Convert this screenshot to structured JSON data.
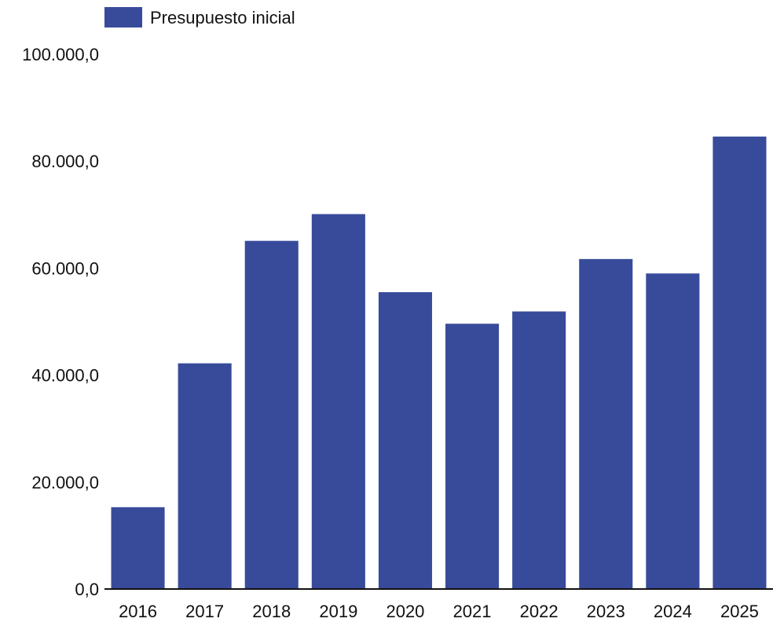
{
  "chart_data": {
    "type": "bar",
    "categories": [
      "2016",
      "2017",
      "2018",
      "2019",
      "2020",
      "2021",
      "2022",
      "2023",
      "2024",
      "2025"
    ],
    "series": [
      {
        "name": "Presupuesto inicial",
        "color": "#384b9b",
        "values": [
          15300,
          42200,
          65100,
          70100,
          55500,
          49600,
          51900,
          61700,
          59000,
          84600
        ]
      }
    ],
    "yticks": [
      "0,0",
      "20.000,0",
      "40.000,0",
      "60.000,0",
      "80.000,0",
      "100.000,0"
    ],
    "ylim": [
      0,
      100000
    ],
    "grid": false,
    "legend_position": "top-left",
    "title": "",
    "xlabel": "",
    "ylabel": ""
  }
}
